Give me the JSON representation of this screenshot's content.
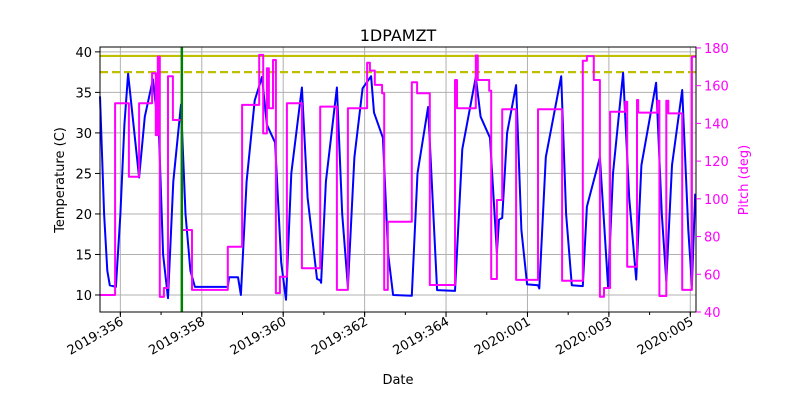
{
  "chart_data": {
    "type": "line",
    "title": "1DPAMZT",
    "xlabel": "Date",
    "ylabel": "Temperature (C)",
    "y2label": "Pitch (deg)",
    "xlim": [
      "2019:355.50",
      "2020:005.14"
    ],
    "ylim": [
      7.9,
      40.6
    ],
    "y2lim": [
      40,
      180.5
    ],
    "grid": true,
    "x_ticks": [
      "2019:356",
      "2019:358",
      "2019:360",
      "2019:362",
      "2019:364",
      "2020:001",
      "2020:003",
      "2020:005"
    ],
    "x_minor_step_days": 1,
    "y_ticks": [
      10,
      15,
      20,
      25,
      30,
      35,
      40
    ],
    "y2_ticks": [
      40,
      60,
      80,
      100,
      120,
      140,
      160,
      180
    ],
    "colors": {
      "temperature": "#0000ff",
      "pitch": "#ff00ff",
      "limit": "#bfbf00",
      "marker": "#008000",
      "y2axis": "#ff00ff"
    },
    "hlines": [
      {
        "y": 39.5,
        "style": "solid",
        "color": "#bfbf00"
      },
      {
        "y": 37.5,
        "style": "dashed",
        "color": "#bfbf00"
      }
    ],
    "vlines": [
      {
        "x": "2019:357.51",
        "color": "#008000"
      }
    ],
    "series": [
      {
        "axis": "left",
        "color": "#0000ff",
        "points": [
          [
            "2019:355.50",
            34.5
          ],
          [
            "2019:355.60",
            20
          ],
          [
            "2019:355.68",
            13
          ],
          [
            "2019:355.74",
            11.2
          ],
          [
            "2019:355.89",
            11
          ],
          [
            "2019:356.00",
            20
          ],
          [
            "2019:356.10",
            31
          ],
          [
            "2019:356.19",
            37.3
          ],
          [
            "2019:356.46",
            24.5
          ],
          [
            "2019:356.60",
            32
          ],
          [
            "2019:356.80",
            36.6
          ],
          [
            "2019:356.95",
            29.8
          ],
          [
            "2019:357.05",
            15
          ],
          [
            "2019:357.17",
            9.6
          ],
          [
            "2019:357.30",
            24
          ],
          [
            "2019:357.49",
            33.5
          ],
          [
            "2019:357.60",
            20
          ],
          [
            "2019:357.72",
            13
          ],
          [
            "2019:357.83",
            11
          ],
          [
            "2019:358.64",
            11
          ],
          [
            "2019:358.67",
            12.2
          ],
          [
            "2019:358.89",
            12.2
          ],
          [
            "2019:358.96",
            10
          ],
          [
            "2019:359.10",
            24
          ],
          [
            "2019:359.30",
            34
          ],
          [
            "2019:359.48",
            36.9
          ],
          [
            "2019:359.60",
            31
          ],
          [
            "2019:359.80",
            28.8
          ],
          [
            "2019:359.95",
            14
          ],
          [
            "2019:360.07",
            9.4
          ],
          [
            "2019:360.20",
            25
          ],
          [
            "2019:360.46",
            35.6
          ],
          [
            "2019:360.60",
            22
          ],
          [
            "2019:360.83",
            12
          ],
          [
            "2019:360.91",
            11.8
          ],
          [
            "2019:360.93",
            11.5
          ],
          [
            "2019:361.05",
            24
          ],
          [
            "2019:361.32",
            35.6
          ],
          [
            "2019:361.45",
            20
          ],
          [
            "2019:361.59",
            11
          ],
          [
            "2019:361.75",
            27
          ],
          [
            "2019:361.95",
            35.5
          ],
          [
            "2019:362.16",
            37
          ],
          [
            "2019:362.23",
            32.5
          ],
          [
            "2019:362.45",
            29.4
          ],
          [
            "2019:362.58",
            15
          ],
          [
            "2019:362.70",
            10
          ],
          [
            "2019:363.16",
            9.9
          ],
          [
            "2019:363.30",
            25
          ],
          [
            "2019:363.56",
            33.2
          ],
          [
            "2019:363.78",
            10.6
          ],
          [
            "2019:364.22",
            10.5
          ],
          [
            "2019:364.40",
            28
          ],
          [
            "2019:364.73",
            36.9
          ],
          [
            "2019:364.85",
            32
          ],
          [
            "2019:365.08",
            29.4
          ],
          [
            "2019:365.25",
            15.2
          ],
          [
            "2019:365.30",
            19.3
          ],
          [
            "2019:365.38",
            19.5
          ],
          [
            "2019:365.50",
            30
          ],
          [
            "2019:365.72",
            35.9
          ],
          [
            "2019:365.85",
            18
          ],
          [
            "2019:365.99",
            11.3
          ],
          [
            "2020:001.26",
            11.2
          ],
          [
            "2020:001.29",
            10.8
          ],
          [
            "2020:001.45",
            27
          ],
          [
            "2020:001.83",
            37
          ],
          [
            "2020:001.95",
            20
          ],
          [
            "2020:002.09",
            11.2
          ],
          [
            "2020:002.36",
            11.1
          ],
          [
            "2020:002.46",
            20.9
          ],
          [
            "2020:002.78",
            27
          ],
          [
            "2020:002.98",
            11
          ],
          [
            "2020:003.10",
            25
          ],
          [
            "2020:003.35",
            37.4
          ],
          [
            "2020:003.50",
            22
          ],
          [
            "2020:003.67",
            11.9
          ],
          [
            "2020:003.80",
            26
          ],
          [
            "2020:004.16",
            36.2
          ],
          [
            "2020:004.30",
            20
          ],
          [
            "2020:004.41",
            11.7
          ],
          [
            "2020:004.55",
            26
          ],
          [
            "2020:004.80",
            35.3
          ],
          [
            "2020:004.95",
            18
          ],
          [
            "2020:005.04",
            11.2
          ],
          [
            "2020:005.12",
            22.5
          ]
        ]
      },
      {
        "axis": "right",
        "color": "#ff00ff",
        "step": true,
        "points": [
          [
            "2019:355.50",
            49
          ],
          [
            "2019:355.87",
            150.7
          ],
          [
            "2019:356.21",
            111.7
          ],
          [
            "2019:356.46",
            150.7
          ],
          [
            "2019:356.78",
            166.6
          ],
          [
            "2019:356.87",
            133.8
          ],
          [
            "2019:356.92",
            175.4
          ],
          [
            "2019:356.97",
            48
          ],
          [
            "2019:357.07",
            52.7
          ],
          [
            "2019:357.17",
            165
          ],
          [
            "2019:357.29",
            141.8
          ],
          [
            "2019:357.51",
            83.5
          ],
          [
            "2019:357.76",
            51.7
          ],
          [
            "2019:358.64",
            74.6
          ],
          [
            "2019:358.99",
            149.8
          ],
          [
            "2019:359.41",
            176.3
          ],
          [
            "2019:359.51",
            134.7
          ],
          [
            "2019:359.60",
            169.2
          ],
          [
            "2019:359.65",
            148
          ],
          [
            "2019:359.75",
            173.6
          ],
          [
            "2019:359.82",
            50
          ],
          [
            "2019:359.92",
            58.7
          ],
          [
            "2019:360.09",
            150.7
          ],
          [
            "2019:360.46",
            63.2
          ],
          [
            "2019:360.91",
            148.9
          ],
          [
            "2019:361.32",
            51.7
          ],
          [
            "2019:361.59",
            148
          ],
          [
            "2019:362.06",
            172.2
          ],
          [
            "2019:362.13",
            168
          ],
          [
            "2019:362.25",
            160.4
          ],
          [
            "2019:362.43",
            156
          ],
          [
            "2019:362.48",
            51.7
          ],
          [
            "2019:362.57",
            87.9
          ],
          [
            "2019:363.16",
            161.8
          ],
          [
            "2019:363.29",
            156
          ],
          [
            "2019:363.60",
            54.3
          ],
          [
            "2019:364.22",
            163
          ],
          [
            "2019:364.27",
            148
          ],
          [
            "2019:364.73",
            176
          ],
          [
            "2019:364.78",
            163
          ],
          [
            "2019:365.06",
            157.3
          ],
          [
            "2019:365.11",
            57.5
          ],
          [
            "2019:365.25",
            99.4
          ],
          [
            "2019:365.38",
            147.5
          ],
          [
            "2019:365.72",
            57
          ],
          [
            "2020:001.26",
            147.5
          ],
          [
            "2020:001.85",
            56.6
          ],
          [
            "2020:002.36",
            173.2
          ],
          [
            "2020:002.46",
            175.7
          ],
          [
            "2020:002.63",
            163
          ],
          [
            "2020:002.78",
            48.1
          ],
          [
            "2020:002.88",
            52.7
          ],
          [
            "2020:003.03",
            146.2
          ],
          [
            "2020:003.40",
            151.5
          ],
          [
            "2020:003.45",
            64
          ],
          [
            "2020:003.69",
            152.4
          ],
          [
            "2020:003.72",
            145.7
          ],
          [
            "2020:004.19",
            152
          ],
          [
            "2020:004.24",
            48.5
          ],
          [
            "2020:004.41",
            152
          ],
          [
            "2020:004.46",
            145.3
          ],
          [
            "2020:004.80",
            51.7
          ],
          [
            "2020:005.04",
            175.4
          ],
          [
            "2020:005.14",
            175.4
          ]
        ]
      }
    ]
  }
}
